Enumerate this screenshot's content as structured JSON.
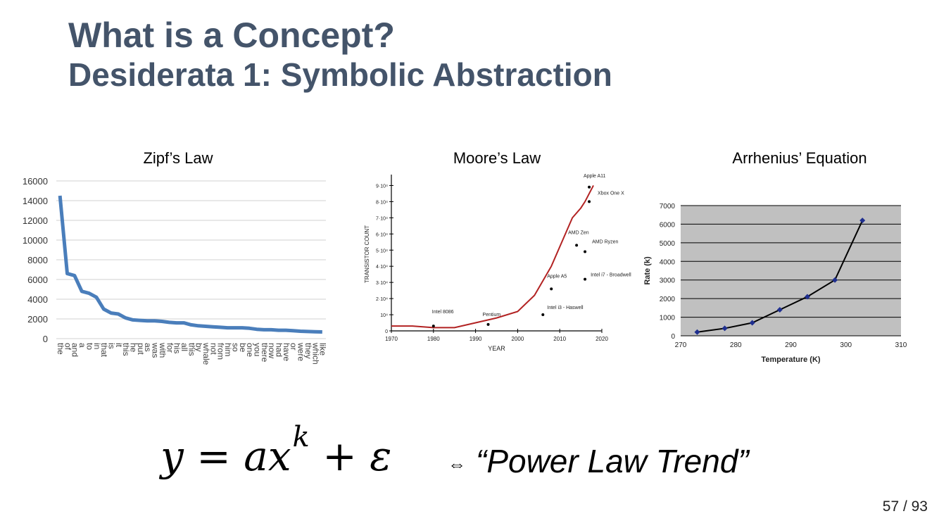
{
  "slide": {
    "title": "What is a Concept?",
    "subtitle": "Desiderata 1:  Symbolic Abstraction",
    "equation": {
      "lhs": "y = ax",
      "exponent": "k",
      "rhs": " + ε"
    },
    "arrow": "⇔",
    "power_law_text": "“Power Law Trend”",
    "page_number": "57 / 93"
  },
  "colors": {
    "heading": "#44546a",
    "zipf_line": "#4a7ebb",
    "moore_line": "#b22222",
    "arrhenius_bg": "#c0c0c0",
    "arrhenius_points": "#1f2f8f"
  },
  "chart_data": [
    {
      "type": "line",
      "title": "Zipf’s Law",
      "categories": [
        "the",
        "of",
        "and",
        "a",
        "to",
        "in",
        "that",
        "is",
        "it",
        "this",
        "he",
        "put",
        "as",
        "was",
        "with",
        "for",
        "his",
        "all",
        "this",
        "by",
        "whale",
        "not",
        "from",
        "him",
        "so",
        "be",
        "one",
        "you",
        "there",
        "now",
        "had",
        "have",
        "or",
        "were",
        "they",
        "which",
        "like"
      ],
      "values": [
        14500,
        6600,
        6400,
        4800,
        4600,
        4200,
        3000,
        2600,
        2500,
        2100,
        1900,
        1850,
        1800,
        1800,
        1750,
        1650,
        1600,
        1600,
        1400,
        1300,
        1250,
        1200,
        1150,
        1100,
        1100,
        1100,
        1050,
        950,
        900,
        900,
        850,
        850,
        800,
        750,
        720,
        700,
        680
      ],
      "yticks": [
        0,
        2000,
        4000,
        6000,
        8000,
        10000,
        12000,
        14000,
        16000
      ],
      "ylim": [
        0,
        16000
      ],
      "grid": true
    },
    {
      "type": "line",
      "title": "Moore’s Law",
      "xlabel": "YEAR",
      "ylabel": "TRANSISTOR COUNT",
      "xticks": [
        "1970",
        "1980",
        "1990",
        "2000",
        "2010",
        "2020"
      ],
      "yticks": [
        "0",
        "10⁴",
        "2·10⁴",
        "3·10⁴",
        "4·10⁴",
        "5·10⁴",
        "6·10⁴",
        "7·10⁴",
        "8·10⁴",
        "9·10⁴"
      ],
      "x": [
        1970,
        1975,
        1980,
        1985,
        1990,
        1995,
        2000,
        2004,
        2008,
        2011,
        2013,
        2015,
        2016,
        2018
      ],
      "y": [
        0.3,
        0.3,
        0.2,
        0.2,
        0.5,
        0.8,
        1.2,
        2.2,
        4.0,
        5.8,
        7.0,
        7.6,
        8.0,
        9.0
      ],
      "annotations": [
        "Intel 8086",
        "Pentium",
        "Apple A5",
        "Intel i3 - Haswell",
        "Intel i7 - Broadwell",
        "AMD Zen",
        "AMD Ryzen",
        "Xbox One X",
        "Apple A11"
      ],
      "grid": false
    },
    {
      "type": "scatter",
      "title": "Arrhenius’ Equation",
      "xlabel": "Temperature (K)",
      "ylabel": "Rate (k)",
      "xticks": [
        "270",
        "280",
        "290",
        "300",
        "310"
      ],
      "yticks": [
        "0",
        "1000",
        "2000",
        "3000",
        "4000",
        "5000",
        "6000",
        "7000"
      ],
      "xlim": [
        270,
        310
      ],
      "ylim": [
        0,
        7000
      ],
      "x": [
        273,
        278,
        283,
        288,
        293,
        298,
        303
      ],
      "y": [
        200,
        400,
        700,
        1400,
        2100,
        3000,
        6200
      ],
      "grid": true
    }
  ]
}
